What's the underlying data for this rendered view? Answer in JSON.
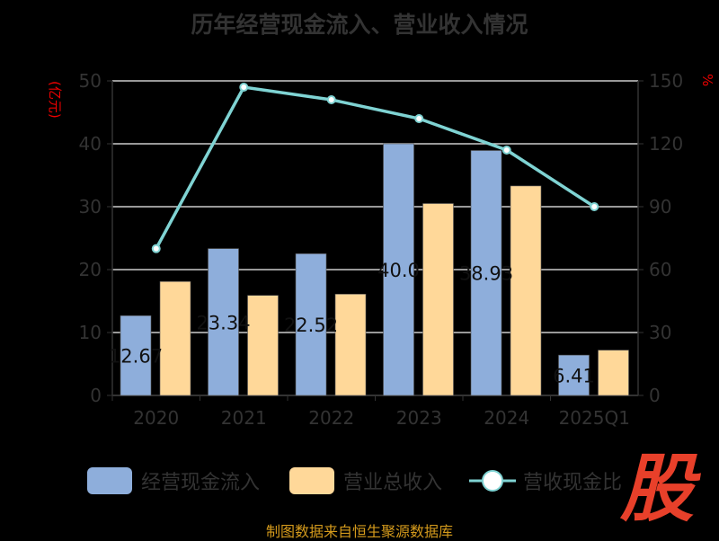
{
  "title": "历年经营现金流入、营业收入情况",
  "left_axis_title": "(亿元)",
  "right_axis_title": "%",
  "source": "制图数据来自恒生聚源数据库",
  "logo_text": "股",
  "colors": {
    "cash": "#8eaedb",
    "revenue": "#ffd899",
    "ratio": "#7fd3d3"
  },
  "chart_data": {
    "type": "bar",
    "title": "历年经营现金流入、营业收入情况",
    "categories": [
      "2020",
      "2021",
      "2022",
      "2023",
      "2024",
      "2025Q1"
    ],
    "series": [
      {
        "name": "经营现金流入",
        "type": "bar",
        "axis": "left",
        "values": [
          12.67,
          23.34,
          22.52,
          40.0,
          38.93,
          6.41
        ],
        "labels": [
          "12.67",
          "23.34",
          "22.52",
          "40.0",
          "38.93",
          "6.41"
        ]
      },
      {
        "name": "营业总收入",
        "type": "bar",
        "axis": "left",
        "values": [
          18.1,
          15.9,
          16.1,
          30.5,
          33.3,
          7.2
        ]
      },
      {
        "name": "营收现金比",
        "type": "line",
        "axis": "right",
        "values": [
          70,
          147,
          141,
          132,
          117,
          90
        ]
      }
    ],
    "left_axis": {
      "label": "(亿元)",
      "ylim": [
        0,
        50
      ],
      "ticks": [
        0,
        10,
        20,
        30,
        40,
        50
      ]
    },
    "right_axis": {
      "label": "%",
      "ylim": [
        0,
        150
      ],
      "ticks": [
        0,
        30,
        60,
        90,
        120,
        150
      ]
    },
    "grid": true,
    "legend": "bottom"
  }
}
